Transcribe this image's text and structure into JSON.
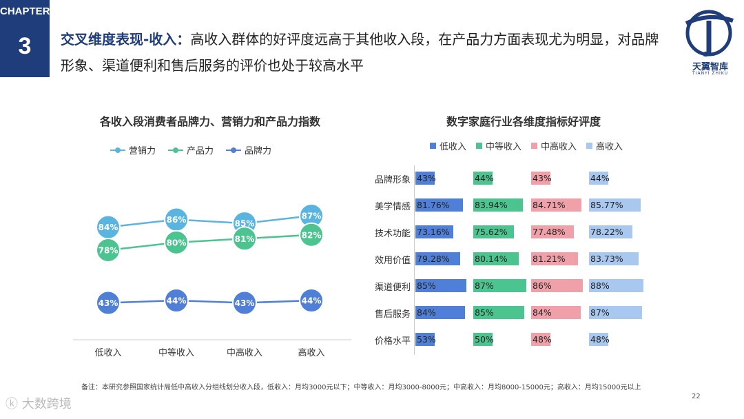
{
  "chapter": {
    "label": "CHAPTER",
    "number": "3"
  },
  "headline": {
    "key": "交叉维度表现-收入：",
    "text": "高收入群体的好评度远高于其他收入段，在产品力方面表现尤为明显，对品牌形象、渠道便利和售后服务的评价也处于较高水平"
  },
  "logo": {
    "name": "天翼智库",
    "sub": "TIANYI ZHIKU"
  },
  "colors": {
    "navy": "#1f3d7a",
    "marketing": "#5ab4e0",
    "product": "#4cc490",
    "brand": "#4f7fd6",
    "low": "#4f7fd6",
    "mid": "#4cc490",
    "midhigh": "#f0a0a8",
    "high": "#a8c8f0"
  },
  "chart_data": [
    {
      "type": "line",
      "title": "各收入段消费者品牌力、营销力和产品力指数",
      "categories": [
        "低收入",
        "中等收入",
        "中高收入",
        "高收入"
      ],
      "series": [
        {
          "name": "营销力",
          "values": [
            84,
            86,
            85,
            87
          ],
          "labels": [
            "84%",
            "86%",
            "85%",
            "87%"
          ]
        },
        {
          "name": "产品力",
          "values": [
            78,
            80,
            81,
            82
          ],
          "labels": [
            "78%",
            "80%",
            "81%",
            "82%"
          ]
        },
        {
          "name": "品牌力",
          "values": [
            43,
            44,
            43,
            44
          ],
          "labels": [
            "43%",
            "44%",
            "43%",
            "44%"
          ]
        }
      ],
      "legend_position": "top"
    },
    {
      "type": "bar",
      "title": "数字家庭行业各维度指标好评度",
      "categories": [
        "品牌形象",
        "美学情感",
        "技术功能",
        "效用价值",
        "渠道便利",
        "售后服务",
        "价格水平"
      ],
      "series": [
        {
          "name": "低收入",
          "values": [
            43,
            81.76,
            73.16,
            79.28,
            85,
            84,
            53
          ],
          "labels": [
            "43%",
            "81.76%",
            "73.16%",
            "79.28%",
            "85%",
            "84%",
            "53%"
          ]
        },
        {
          "name": "中等收入",
          "values": [
            44,
            83.94,
            75.62,
            80.14,
            87,
            85,
            50
          ],
          "labels": [
            "44%",
            "83.94%",
            "75.62%",
            "80.14%",
            "87%",
            "85%",
            "50%"
          ]
        },
        {
          "name": "中高收入",
          "values": [
            43,
            84.71,
            77.48,
            81.21,
            86,
            84,
            48
          ],
          "labels": [
            "43%",
            "84.71%",
            "77.48%",
            "81.21%",
            "86%",
            "84%",
            "48%"
          ]
        },
        {
          "name": "高收入",
          "values": [
            44,
            85.77,
            78.22,
            83.73,
            88,
            87,
            48
          ],
          "labels": [
            "44%",
            "85.77%",
            "78.22%",
            "83.73%",
            "88%",
            "87%",
            "48%"
          ]
        }
      ],
      "legend_position": "top"
    }
  ],
  "footnote": "备注：本研究参照国家统计局低中高收入分组线划分收入段，低收入：月均3000元以下；中等收入：月均3000-8000元；中高收入：月均8000-15000元；高收入：月均15000元以上",
  "page_number": "22",
  "watermark": "大数跨境"
}
